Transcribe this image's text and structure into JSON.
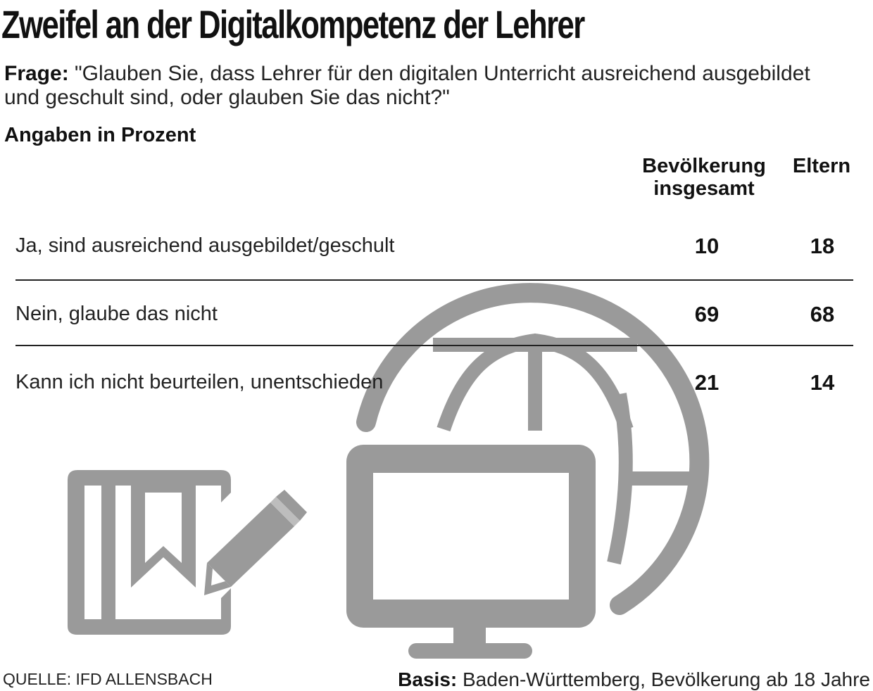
{
  "header": {
    "title": "Zweifel an der Digitalkompetenz der Lehrer",
    "question_label": "Frage:",
    "question_text": "\"Glauben Sie, dass Lehrer für den digitalen Unterricht ausreichend ausgebildet und geschult sind, oder glauben Sie das nicht?\"",
    "unit_note": "Angaben in Prozent"
  },
  "footer": {
    "source": "QUELLE: IFD ALLENSBACH",
    "basis_label": "Basis:",
    "basis_text": "Baden-Württemberg, Bevölkerung ab 18 Jahre"
  },
  "colors": {
    "text": "#111111",
    "rule": "#222222",
    "icon_fill": "#9a9a9a",
    "background": "#ffffff"
  },
  "icons": [
    "notebook-pencil-icon",
    "monitor-icon",
    "globe-icon"
  ],
  "chart_data": {
    "type": "table",
    "title": "Zweifel an der Digitalkompetenz der Lehrer",
    "columns": [
      {
        "line1": "Bevölkerung",
        "line2": "insgesamt"
      },
      {
        "line1": "Eltern",
        "line2": ""
      }
    ],
    "rows": [
      {
        "label": "Ja, sind ausreichend ausgebildet/geschult",
        "values": [
          10,
          18
        ]
      },
      {
        "label": "Nein, glaube das nicht",
        "values": [
          69,
          68
        ]
      },
      {
        "label": "Kann ich nicht beurteilen, unentschieden",
        "values": [
          21,
          14
        ]
      }
    ]
  }
}
